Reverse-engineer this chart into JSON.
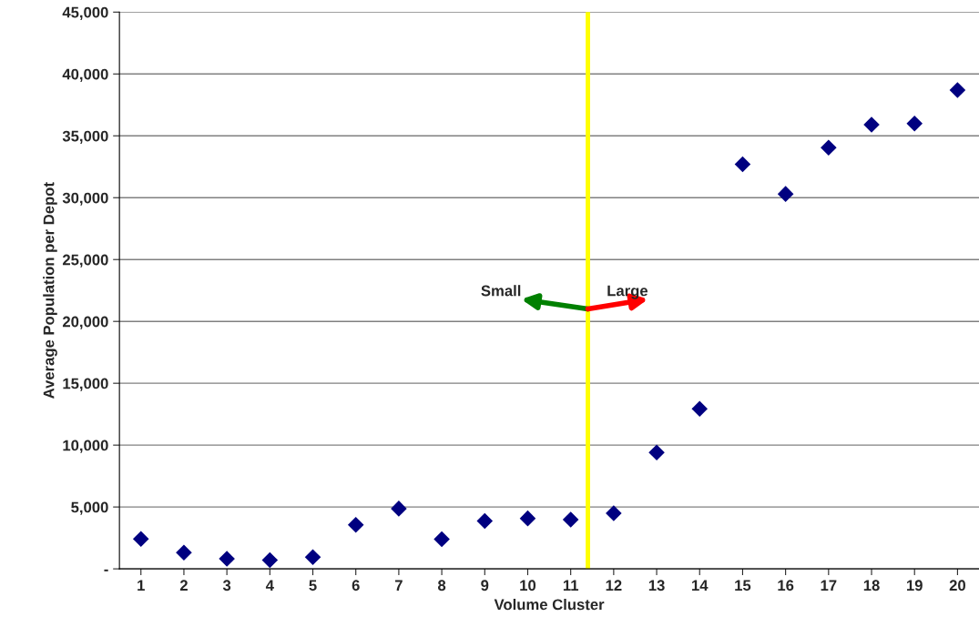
{
  "chart_data": {
    "type": "scatter",
    "xlabel": "Volume Cluster",
    "ylabel": "Average Population per Depot",
    "x": [
      1,
      2,
      3,
      4,
      5,
      6,
      7,
      8,
      9,
      10,
      11,
      12,
      13,
      14,
      15,
      16,
      17,
      18,
      19,
      20
    ],
    "series": [
      {
        "color": "#000080",
        "values": [
          2420,
          1310,
          810,
          710,
          940,
          3550,
          4870,
          2400,
          3870,
          4080,
          3980,
          4500,
          9410,
          12940,
          32700,
          30300,
          34050,
          35900,
          36000,
          38700
        ]
      }
    ],
    "marker": "diamond",
    "grid": "y",
    "legend": false,
    "xlim": [
      0.5,
      20.5
    ],
    "xticks": [
      1,
      2,
      3,
      4,
      5,
      6,
      7,
      8,
      9,
      10,
      11,
      12,
      13,
      14,
      15,
      16,
      17,
      18,
      19,
      20
    ],
    "ylim": [
      0,
      45000
    ],
    "yticks": [
      {
        "value": 0,
        "label": "-"
      },
      {
        "value": 5000,
        "label": "5,000"
      },
      {
        "value": 10000,
        "label": "10,000"
      },
      {
        "value": 15000,
        "label": "15,000"
      },
      {
        "value": 20000,
        "label": "20,000"
      },
      {
        "value": 25000,
        "label": "25,000"
      },
      {
        "value": 30000,
        "label": "30,000"
      },
      {
        "value": 35000,
        "label": "35,000"
      },
      {
        "value": 40000,
        "label": "40,000"
      },
      {
        "value": 45000,
        "label": "45,000"
      }
    ],
    "ref_lines": [
      {
        "axis": "x",
        "value": 11.4,
        "color": "#ffff00"
      }
    ],
    "annotations": [
      {
        "text": "Small",
        "x": 11.4,
        "y": 21000
      },
      {
        "text": "Large",
        "x": 11.4,
        "y": 21000
      }
    ]
  }
}
